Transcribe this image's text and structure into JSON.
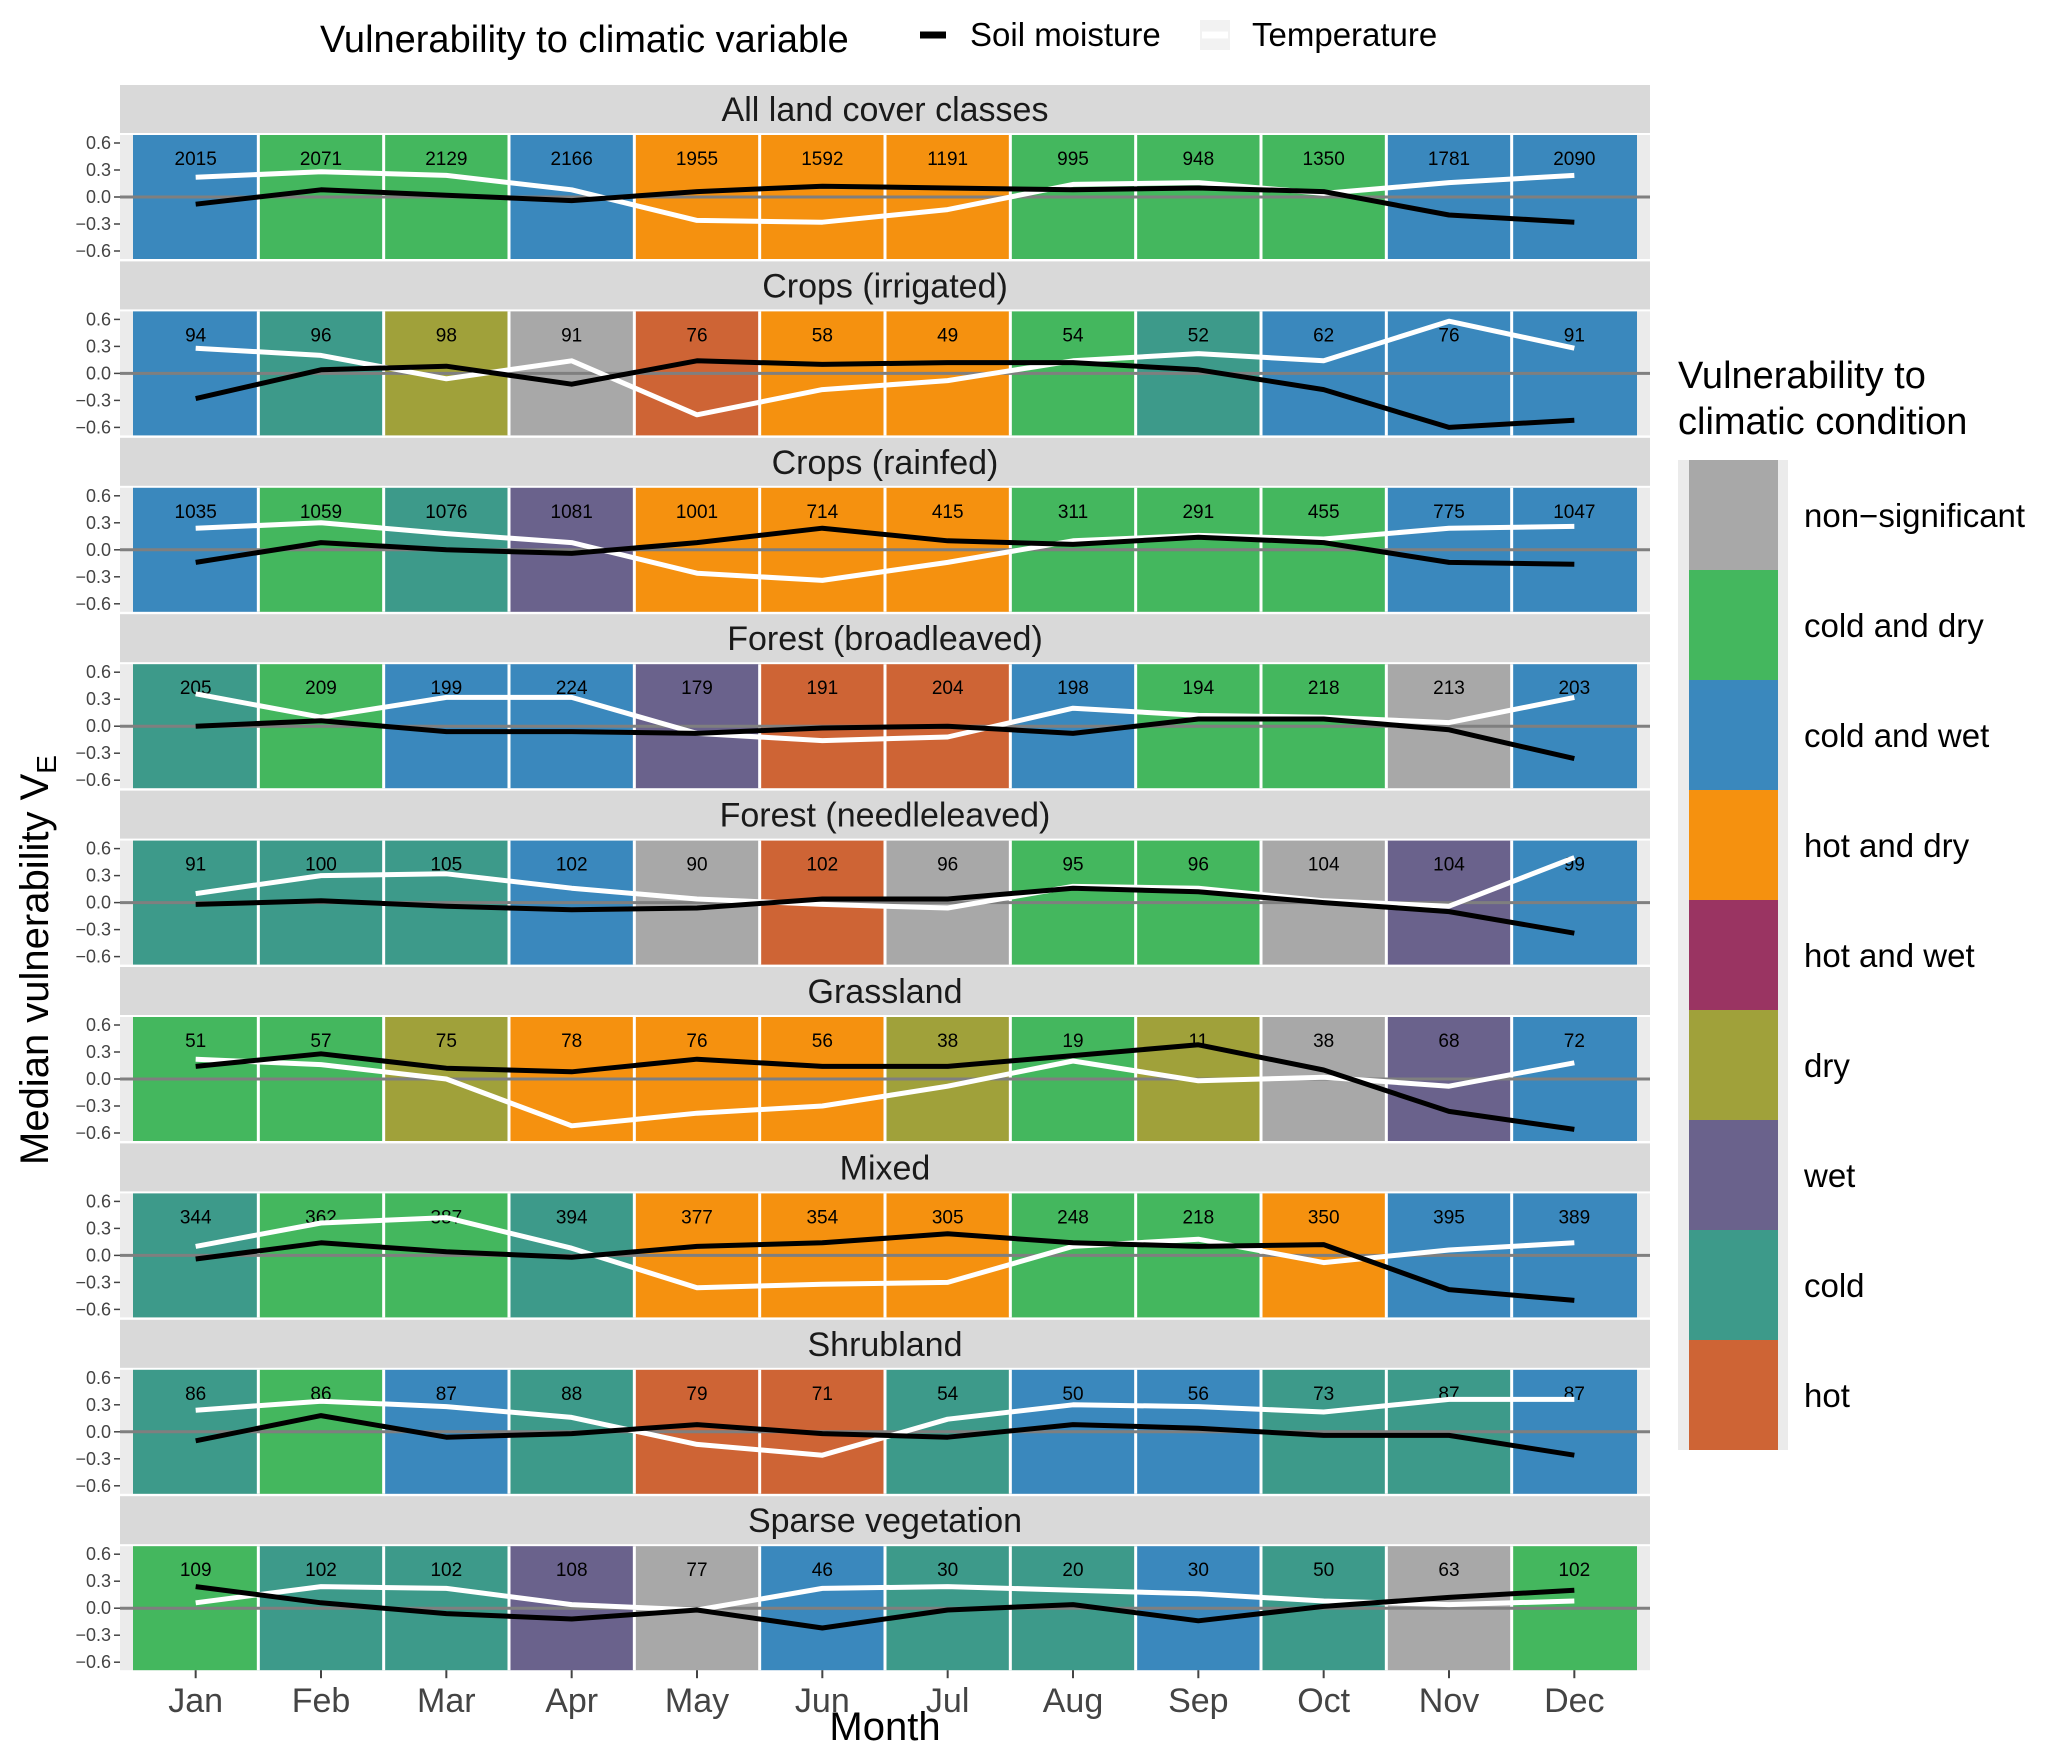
{
  "chart_data": {
    "type": "tile-line-facets",
    "xlabel": "Month",
    "ylabel": "Median vulnerability V",
    "ylabel_subscript": "E",
    "ylim": [
      -0.6,
      0.6
    ],
    "yticks": [
      0.6,
      0.3,
      0.0,
      -0.3,
      -0.6
    ],
    "ytick_labels": [
      "0.6",
      "0.3",
      "0.0",
      "−0.3",
      "−0.6"
    ],
    "months": [
      "Jan",
      "Feb",
      "Mar",
      "Apr",
      "May",
      "Jun",
      "Jul",
      "Aug",
      "Sep",
      "Oct",
      "Nov",
      "Dec"
    ],
    "legend_top": {
      "title": "Vulnerability to climatic variable",
      "items": [
        {
          "label": "Soil moisture",
          "color": "#000000"
        },
        {
          "label": "Temperature",
          "color": "#ffffff"
        }
      ]
    },
    "legend_right": {
      "title_line1": "Vulnerability to",
      "title_line2": "climatic condition",
      "items": [
        {
          "key": "ns",
          "label": "non−significant",
          "color": "#A8A8A8"
        },
        {
          "key": "cd",
          "label": "cold and dry",
          "color": "#44B75E"
        },
        {
          "key": "cw",
          "label": "cold and wet",
          "color": "#3A88BD"
        },
        {
          "key": "hd",
          "label": "hot and dry",
          "color": "#F5910F"
        },
        {
          "key": "hw",
          "label": "hot and wet",
          "color": "#9A3462"
        },
        {
          "key": "d",
          "label": "dry",
          "color": "#A0A13A"
        },
        {
          "key": "w",
          "label": "wet",
          "color": "#6A628C"
        },
        {
          "key": "c",
          "label": "cold",
          "color": "#3D9A8A"
        },
        {
          "key": "h",
          "label": "hot",
          "color": "#CE6435"
        }
      ]
    },
    "panels": [
      {
        "title": "All land cover classes",
        "conditions": [
          "cw",
          "cd",
          "cd",
          "cw",
          "hd",
          "hd",
          "hd",
          "cd",
          "cd",
          "cd",
          "cw",
          "cw"
        ],
        "counts": [
          "2015",
          "2071",
          "2129",
          "2166",
          "1955",
          "1592",
          "1191",
          "995",
          "948",
          "1350",
          "1781",
          "2090"
        ],
        "soil_moisture": [
          -0.08,
          0.08,
          0.02,
          -0.04,
          0.06,
          0.12,
          0.1,
          0.08,
          0.1,
          0.06,
          -0.2,
          -0.28
        ],
        "temperature": [
          0.22,
          0.28,
          0.24,
          0.08,
          -0.26,
          -0.28,
          -0.14,
          0.14,
          0.16,
          0.04,
          0.16,
          0.24
        ]
      },
      {
        "title": "Crops (irrigated)",
        "conditions": [
          "cw",
          "c",
          "d",
          "ns",
          "h",
          "hd",
          "hd",
          "cd",
          "c",
          "cw",
          "cw",
          "cw"
        ],
        "counts": [
          "94",
          "96",
          "98",
          "91",
          "76",
          "58",
          "49",
          "54",
          "52",
          "62",
          "76",
          "91"
        ],
        "soil_moisture": [
          -0.28,
          0.04,
          0.08,
          -0.12,
          0.14,
          0.1,
          0.12,
          0.12,
          0.04,
          -0.18,
          -0.6,
          -0.52
        ],
        "temperature": [
          0.28,
          0.2,
          -0.06,
          0.14,
          -0.46,
          -0.18,
          -0.08,
          0.14,
          0.22,
          0.14,
          0.58,
          0.28
        ]
      },
      {
        "title": "Crops (rainfed)",
        "conditions": [
          "cw",
          "cd",
          "c",
          "w",
          "hd",
          "hd",
          "hd",
          "cd",
          "cd",
          "cd",
          "cw",
          "cw"
        ],
        "counts": [
          "1035",
          "1059",
          "1076",
          "1081",
          "1001",
          "714",
          "415",
          "311",
          "291",
          "455",
          "775",
          "1047"
        ],
        "soil_moisture": [
          -0.14,
          0.08,
          0.0,
          -0.04,
          0.08,
          0.24,
          0.1,
          0.06,
          0.14,
          0.08,
          -0.14,
          -0.16
        ],
        "temperature": [
          0.24,
          0.3,
          0.18,
          0.08,
          -0.26,
          -0.34,
          -0.14,
          0.1,
          0.16,
          0.12,
          0.24,
          0.26
        ]
      },
      {
        "title": "Forest (broadleaved)",
        "conditions": [
          "c",
          "cd",
          "cw",
          "cw",
          "w",
          "h",
          "h",
          "cw",
          "cd",
          "cd",
          "ns",
          "cw"
        ],
        "counts": [
          "205",
          "209",
          "199",
          "224",
          "179",
          "191",
          "204",
          "198",
          "194",
          "218",
          "213",
          "203"
        ],
        "soil_moisture": [
          0.0,
          0.06,
          -0.06,
          -0.06,
          -0.08,
          -0.02,
          0.0,
          -0.08,
          0.08,
          0.08,
          -0.04,
          -0.36
        ],
        "temperature": [
          0.36,
          0.1,
          0.32,
          0.32,
          -0.08,
          -0.16,
          -0.12,
          0.2,
          0.12,
          0.1,
          0.04,
          0.32
        ]
      },
      {
        "title": "Forest (needleleaved)",
        "conditions": [
          "c",
          "c",
          "c",
          "cw",
          "ns",
          "h",
          "ns",
          "cd",
          "cd",
          "ns",
          "w",
          "cw"
        ],
        "counts": [
          "91",
          "100",
          "105",
          "102",
          "90",
          "102",
          "96",
          "95",
          "96",
          "104",
          "104",
          "99"
        ],
        "soil_moisture": [
          -0.02,
          0.02,
          -0.04,
          -0.08,
          -0.06,
          0.04,
          0.04,
          0.16,
          0.12,
          0.0,
          -0.1,
          -0.34
        ],
        "temperature": [
          0.1,
          0.3,
          0.32,
          0.16,
          0.04,
          -0.02,
          -0.06,
          0.18,
          0.16,
          0.02,
          -0.04,
          0.5
        ]
      },
      {
        "title": "Grassland",
        "conditions": [
          "cd",
          "cd",
          "d",
          "hd",
          "hd",
          "hd",
          "d",
          "cd",
          "d",
          "ns",
          "w",
          "cw"
        ],
        "counts": [
          "51",
          "57",
          "75",
          "78",
          "76",
          "56",
          "38",
          "19",
          "11",
          "38",
          "68",
          "72"
        ],
        "soil_moisture": [
          0.14,
          0.28,
          0.12,
          0.08,
          0.22,
          0.14,
          0.14,
          0.26,
          0.38,
          0.1,
          -0.36,
          -0.56
        ],
        "temperature": [
          0.22,
          0.16,
          0.0,
          -0.52,
          -0.38,
          -0.3,
          -0.08,
          0.2,
          -0.02,
          0.02,
          -0.08,
          0.18
        ]
      },
      {
        "title": "Mixed",
        "conditions": [
          "c",
          "cd",
          "cd",
          "c",
          "hd",
          "hd",
          "hd",
          "cd",
          "cd",
          "hd",
          "cw",
          "cw"
        ],
        "counts": [
          "344",
          "362",
          "387",
          "394",
          "377",
          "354",
          "305",
          "248",
          "218",
          "350",
          "395",
          "389"
        ],
        "soil_moisture": [
          -0.04,
          0.14,
          0.04,
          -0.02,
          0.1,
          0.14,
          0.24,
          0.14,
          0.1,
          0.12,
          -0.38,
          -0.5
        ],
        "temperature": [
          0.1,
          0.36,
          0.42,
          0.08,
          -0.36,
          -0.32,
          -0.3,
          0.1,
          0.18,
          -0.08,
          0.06,
          0.14
        ]
      },
      {
        "title": "Shrubland",
        "conditions": [
          "c",
          "cd",
          "cw",
          "c",
          "h",
          "h",
          "c",
          "cw",
          "cw",
          "c",
          "c",
          "cw"
        ],
        "counts": [
          "86",
          "86",
          "87",
          "88",
          "79",
          "71",
          "54",
          "50",
          "56",
          "73",
          "87",
          "87"
        ],
        "soil_moisture": [
          -0.1,
          0.18,
          -0.06,
          -0.02,
          0.08,
          -0.02,
          -0.06,
          0.08,
          0.04,
          -0.04,
          -0.04,
          -0.26
        ],
        "temperature": [
          0.24,
          0.34,
          0.28,
          0.16,
          -0.14,
          -0.26,
          0.14,
          0.3,
          0.28,
          0.22,
          0.36,
          0.36
        ]
      },
      {
        "title": "Sparse vegetation",
        "conditions": [
          "cd",
          "c",
          "c",
          "w",
          "ns",
          "cw",
          "c",
          "c",
          "cw",
          "c",
          "ns",
          "cd"
        ],
        "counts": [
          "109",
          "102",
          "102",
          "108",
          "77",
          "46",
          "30",
          "20",
          "30",
          "50",
          "63",
          "102"
        ],
        "soil_moisture": [
          0.24,
          0.06,
          -0.06,
          -0.12,
          -0.02,
          -0.22,
          -0.02,
          0.04,
          -0.14,
          0.02,
          0.12,
          0.2
        ],
        "temperature": [
          0.06,
          0.24,
          0.22,
          0.04,
          -0.02,
          0.22,
          0.24,
          0.2,
          0.16,
          0.08,
          0.04,
          0.08
        ]
      }
    ]
  }
}
